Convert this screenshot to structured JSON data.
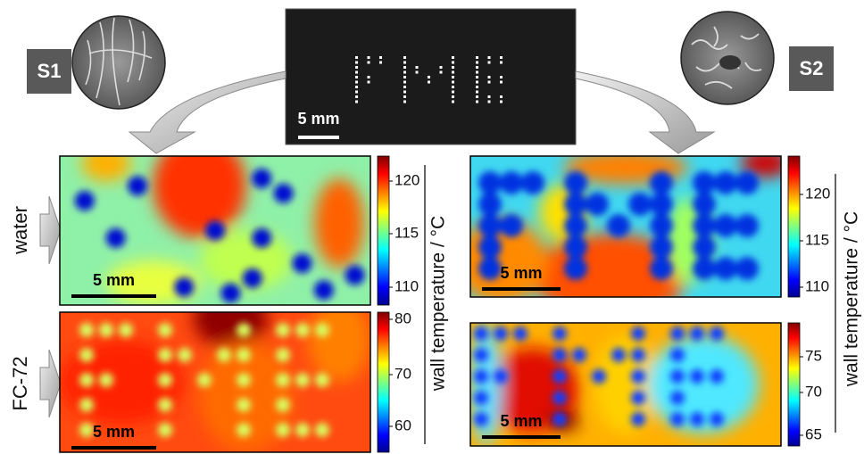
{
  "samples": [
    "S1",
    "S2"
  ],
  "photo": {
    "scale_bar": "5 mm"
  },
  "rows": [
    "water",
    "FC-72"
  ],
  "panels": [
    {
      "scale_bar": "5 mm",
      "colorbar_ticks": [
        120,
        115,
        110
      ]
    },
    {
      "scale_bar": "5 mm",
      "colorbar_ticks": [
        80,
        70,
        60
      ]
    },
    {
      "scale_bar": "5 mm",
      "colorbar_ticks": [
        120,
        115,
        110
      ]
    },
    {
      "scale_bar": "5 mm",
      "colorbar_ticks": [
        75,
        70,
        65
      ]
    }
  ],
  "colorbar_labels": [
    "wall temperature / °C",
    "wall temperature / °C"
  ]
}
